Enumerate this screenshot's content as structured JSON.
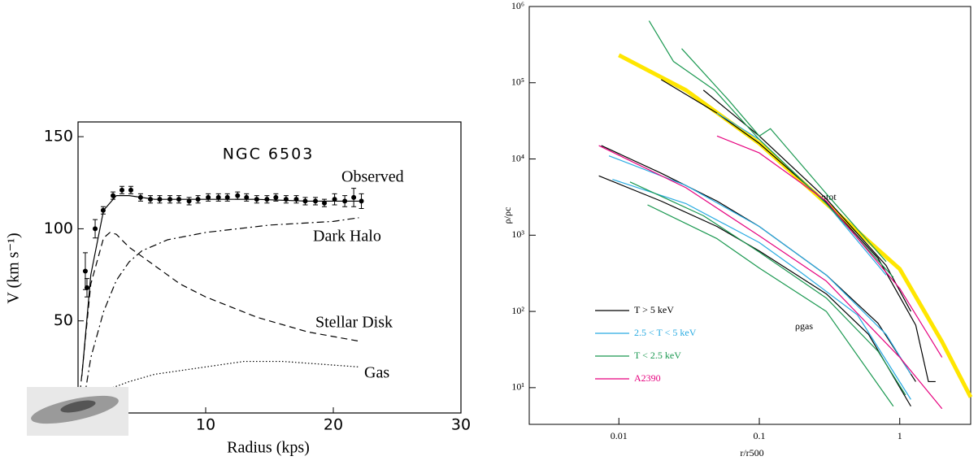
{
  "chart_data": [
    {
      "type": "line",
      "title": "NGC 6503",
      "xlabel": "Radius (kps)",
      "ylabel": "V (km s⁻¹)",
      "xlim": [
        0,
        30
      ],
      "ylim": [
        0,
        158
      ],
      "xticks": [
        10,
        20,
        30
      ],
      "yticks": [
        50,
        100,
        150
      ],
      "series": [
        {
          "name": "Observed",
          "style": "points",
          "color": "#000000",
          "x": [
            0.57,
            0.7,
            1.34,
            1.97,
            2.74,
            3.44,
            4.14,
            4.9,
            5.67,
            6.4,
            7.2,
            7.9,
            8.7,
            9.4,
            10.2,
            11.0,
            11.7,
            12.5,
            13.2,
            14.0,
            14.8,
            15.5,
            16.3,
            17.1,
            17.8,
            18.6,
            19.3,
            20.1,
            20.9,
            21.6,
            22.2
          ],
          "values": [
            77,
            68,
            100,
            110,
            118,
            121,
            121,
            117,
            116,
            116,
            116,
            116,
            115,
            116,
            117,
            117,
            117,
            118,
            117,
            116,
            116,
            117,
            116,
            116,
            115,
            115,
            114,
            116,
            115,
            117,
            115
          ],
          "errors": [
            10,
            5,
            5,
            2,
            2,
            2,
            2,
            2,
            2,
            2,
            2,
            2,
            2,
            2,
            2,
            2,
            2,
            2,
            2,
            2,
            2,
            2,
            2,
            2,
            2,
            2,
            2,
            3,
            3,
            5,
            4
          ]
        },
        {
          "style": "solid",
          "color": "#000000",
          "x": [
            0.3,
            1,
            2,
            3,
            4,
            6,
            10,
            14,
            18,
            22
          ],
          "values": [
            20,
            75,
            110,
            118,
            118,
            116,
            116,
            116,
            115,
            115
          ]
        },
        {
          "name": "Dark Halo",
          "style": "dashdot",
          "color": "#000000",
          "x": [
            0.3,
            1,
            2,
            3,
            4,
            5,
            7,
            10,
            15,
            20,
            22
          ],
          "values": [
            0,
            30,
            55,
            72,
            82,
            88,
            94,
            98,
            102,
            104,
            106
          ]
        },
        {
          "name": "Stellar Disk",
          "style": "dashed",
          "color": "#000000",
          "x": [
            0,
            1,
            2,
            2.5,
            3,
            4,
            6,
            8,
            10,
            14,
            18,
            22
          ],
          "values": [
            0,
            70,
            95,
            98,
            97,
            90,
            80,
            70,
            63,
            52,
            44,
            39
          ]
        },
        {
          "name": "Gas",
          "style": "dotted",
          "color": "#000000",
          "x": [
            2,
            4,
            6,
            10,
            13,
            16,
            18,
            22
          ],
          "values": [
            12,
            17,
            21,
            25,
            28,
            28,
            27,
            25
          ]
        }
      ]
    },
    {
      "type": "line",
      "log_x": true,
      "log_y": true,
      "xlabel": "r/r500",
      "ylabel": "ρ/ρc",
      "xlim": [
        0.0023,
        3.2
      ],
      "ylim": [
        3.3,
        1000000
      ],
      "xticks": [
        0.01,
        0.1,
        1
      ],
      "yticks": [
        {
          "value": 10,
          "label": "10¹"
        },
        {
          "value": 100,
          "label": "10²"
        },
        {
          "value": 1000,
          "label": "10³"
        },
        {
          "value": 10000,
          "label": "10⁴"
        },
        {
          "value": 100000,
          "label": "10⁵"
        },
        {
          "value": 1000000,
          "label": "10⁶"
        }
      ],
      "annotations": [
        "ρtot",
        "ρgas"
      ],
      "legend": "lower left",
      "series": [
        {
          "color": "#ffe600",
          "line_width": 5,
          "x": [
            0.01,
            0.03,
            0.1,
            0.3,
            1,
            2,
            3.2
          ],
          "values": [
            230000,
            80000,
            16000,
            2600,
            360,
            40,
            7.5
          ]
        },
        {
          "name": "T > 5 keV",
          "color": "#000000",
          "x": [
            0.0072,
            0.02,
            0.05,
            0.1,
            0.3,
            0.6,
            1.2
          ],
          "values": [
            6000,
            2800,
            1300,
            620,
            170,
            50,
            5.7
          ]
        },
        {
          "color": "#000000",
          "x": [
            0.02,
            0.05,
            0.1,
            0.3,
            0.7,
            1.3,
            1.6,
            1.8
          ],
          "values": [
            110000,
            40000,
            16000,
            2700,
            500,
            66,
            12,
            12
          ]
        },
        {
          "color": "#000000",
          "x": [
            0.0075,
            0.02,
            0.05,
            0.1,
            0.3,
            0.7,
            1.3
          ],
          "values": [
            15000,
            6500,
            2800,
            1300,
            300,
            70,
            12
          ]
        },
        {
          "color": "#000000",
          "x": [
            0.04,
            0.1,
            0.3,
            0.8,
            1.2
          ],
          "values": [
            80000,
            20000,
            3000,
            400,
            100
          ]
        },
        {
          "name": "2.5 < T < 5 keV",
          "color": "#29abe2",
          "x": [
            0.009,
            0.03,
            0.1,
            0.2,
            0.5,
            1.2
          ],
          "values": [
            5400,
            2600,
            800,
            320,
            90,
            7
          ]
        },
        {
          "color": "#29abe2",
          "x": [
            0.0085,
            0.03,
            0.1,
            0.3,
            0.8,
            1.2
          ],
          "values": [
            11000,
            4500,
            1300,
            300,
            50,
            15
          ]
        },
        {
          "color": "#29abe2",
          "x": [
            0.05,
            0.1,
            0.3,
            0.8
          ],
          "values": [
            40000,
            18000,
            2600,
            300
          ]
        },
        {
          "name": "T < 2.5 keV",
          "color": "#1a9850",
          "x": [
            0.016,
            0.05,
            0.1,
            0.3,
            0.9
          ],
          "values": [
            2500,
            900,
            370,
            100,
            5.7
          ]
        },
        {
          "color": "#1a9850",
          "x": [
            0.012,
            0.04,
            0.1,
            0.3,
            0.7,
            1.1
          ],
          "values": [
            5000,
            1800,
            600,
            150,
            30,
            8
          ]
        },
        {
          "color": "#1a9850",
          "x": [
            0.0164,
            0.0245,
            0.048,
            0.1,
            0.3,
            0.9
          ],
          "values": [
            650000,
            190000,
            80000,
            18000,
            2600,
            280
          ]
        },
        {
          "color": "#1a9850",
          "x": [
            0.028,
            0.06,
            0.1,
            0.12,
            0.3,
            0.8
          ],
          "values": [
            280000,
            60000,
            20000,
            25000,
            3500,
            450
          ]
        },
        {
          "name": "A2390",
          "color": "#e6007e",
          "x": [
            0.0072,
            0.03,
            0.1,
            0.3,
            1,
            2
          ],
          "values": [
            15000,
            4200,
            980,
            250,
            25,
            5.3
          ]
        },
        {
          "color": "#e6007e",
          "x": [
            0.05,
            0.1,
            0.3,
            1,
            2
          ],
          "values": [
            20000,
            12000,
            2800,
            200,
            25
          ]
        }
      ]
    }
  ]
}
